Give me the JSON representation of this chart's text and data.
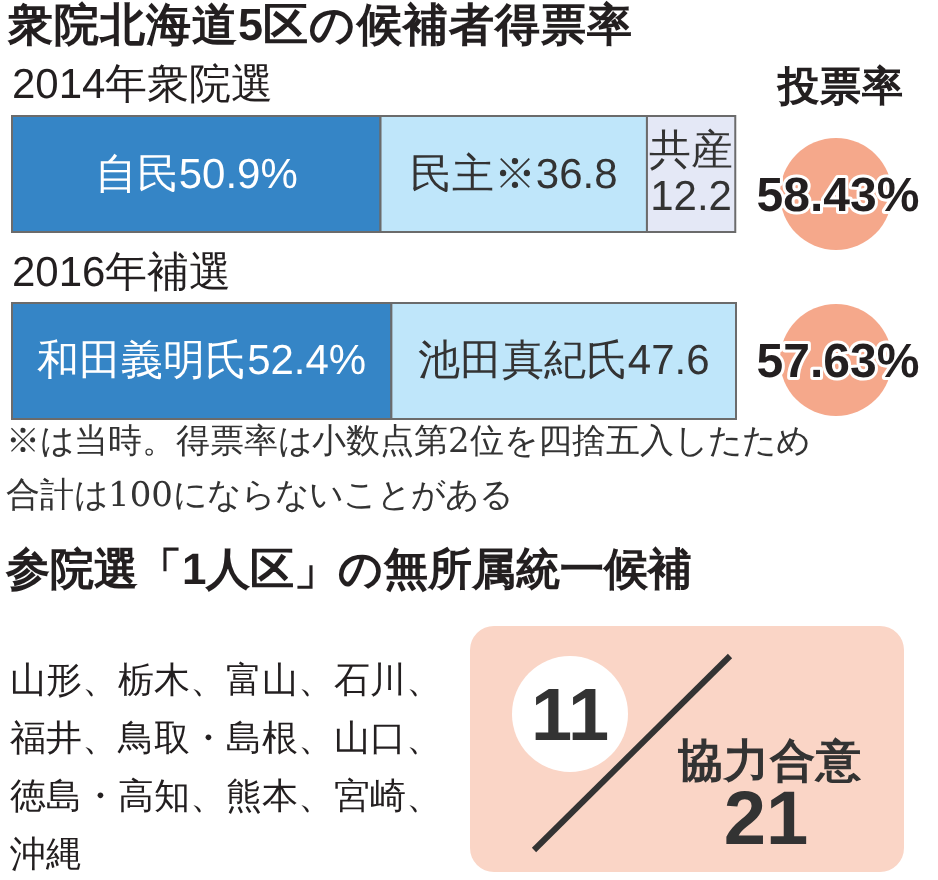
{
  "chart_data": [
    {
      "type": "bar",
      "orientation": "horizontal",
      "stacked": true,
      "title": "衆院北海道5区の候補者得票率",
      "categories": [
        "2014年衆院選",
        "2016年補選"
      ],
      "xlim": [
        0,
        100
      ],
      "tick_labels": "y",
      "series": [
        {
          "color": "#3585c6",
          "values": [
            50.9,
            52.4
          ],
          "value_labels": [
            "自民50.9%",
            "和田義明氏52.4%"
          ]
        },
        {
          "color": "#bfe6fa",
          "values": [
            36.8,
            47.6
          ],
          "value_labels": [
            "民主※36.8",
            "池田真紀氏47.6"
          ]
        },
        {
          "color": "#e4e8f6",
          "values": [
            12.2,
            null
          ],
          "value_labels": [
            "共産12.2",
            null
          ]
        }
      ],
      "annotations": [
        "※は当時。得票率は小数点第2位を四捨五入したため合計は100にならないことがある"
      ]
    },
    {
      "type": "other",
      "title": "投票率",
      "annotations": [
        "58.43%",
        "57.63%"
      ]
    },
    {
      "type": "other",
      "title": "参院選「1人区」の無所属統一候補",
      "annotations": [
        "山形、栃木、富山、石川、福井、鳥取・島根、山口、徳島・高知、熊本、宮崎、沖縄",
        "11",
        "協力合意",
        "21"
      ]
    }
  ]
}
